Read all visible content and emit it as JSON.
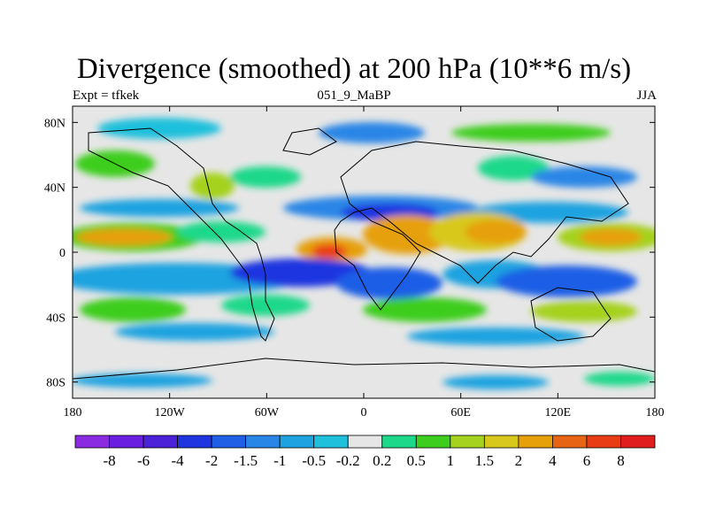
{
  "title": "Divergence (smoothed) at 200 hPa (10**6 m/s)",
  "left_string": "Expt = tfkek",
  "center_string": "051_9_MaBP",
  "right_string": "JJA",
  "x_ticks": [
    "180",
    "120W",
    "60W",
    "0",
    "60E",
    "120E",
    "180"
  ],
  "y_ticks": [
    "80N",
    "40N",
    "0",
    "40S",
    "80S"
  ],
  "colorbar": {
    "labels": [
      "-8",
      "-6",
      "-4",
      "-2",
      "-1.5",
      "-1",
      "-0.5",
      "-0.2",
      "0.2",
      "0.5",
      "1",
      "1.5",
      "2",
      "4",
      "6",
      "8"
    ],
    "colors": [
      "#8a2be2",
      "#6a1fe0",
      "#4b22d8",
      "#1e35e0",
      "#1f5fe6",
      "#2a86e6",
      "#1ea3e0",
      "#1ec0dc",
      "#e6e6e6",
      "#1ed88a",
      "#3ccd1e",
      "#a5d21e",
      "#d8c81e",
      "#e6a00a",
      "#e66414",
      "#e83c14",
      "#e01e1e"
    ]
  },
  "chart_data": {
    "type": "heatmap",
    "title": "Divergence (smoothed) at 200 hPa (10**6 m/s)",
    "experiment": "Expt = tfkek",
    "case": "051_9_MaBP",
    "season": "JJA",
    "x_range": [
      -180,
      180
    ],
    "y_range": [
      -90,
      90
    ],
    "contour_levels": [
      -8,
      -6,
      -4,
      -2,
      -1.5,
      -1,
      -0.5,
      -0.2,
      0.2,
      0.5,
      1,
      1.5,
      2,
      4,
      6,
      8
    ],
    "regions": [
      {
        "name": "equatorial-pacific-divergence",
        "lon": 180,
        "lat": 8,
        "value": 4
      },
      {
        "name": "equatorial-atlantic-divergence",
        "lon": -20,
        "lat": 0,
        "value": 6
      },
      {
        "name": "south-asian-divergence",
        "lon": 40,
        "lat": 10,
        "value": 4
      },
      {
        "name": "east-indian-ocean-divergence",
        "lon": 85,
        "lat": 12,
        "value": 4
      },
      {
        "name": "southern-hemisphere-convergence",
        "lon": -40,
        "lat": -10,
        "value": -4
      },
      {
        "name": "south-indian-convergence",
        "lon": 50,
        "lat": -15,
        "value": -2
      },
      {
        "name": "north-africa-convergence",
        "lon": 10,
        "lat": 25,
        "value": -4
      }
    ]
  }
}
